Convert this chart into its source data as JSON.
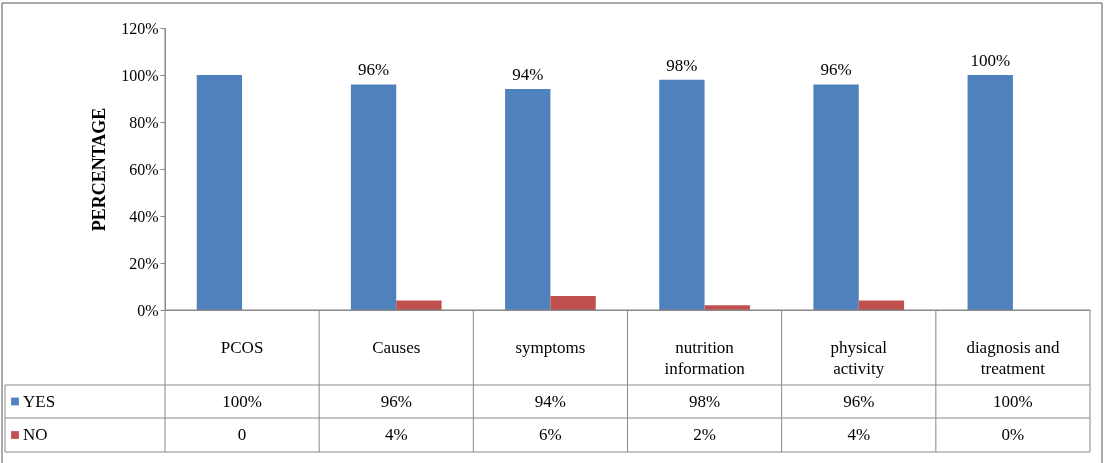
{
  "chart_data": {
    "type": "bar",
    "ylabel": "PERCENTAGE",
    "categories": [
      "PCOS",
      "Causes",
      "symptoms",
      "nutrition information",
      "physical activity",
      "diagnosis and treatment"
    ],
    "series": [
      {
        "name": "YES",
        "color": "#4f81bd",
        "values": [
          100,
          96,
          94,
          98,
          96,
          100
        ],
        "value_labels": [
          "100%",
          "96%",
          "94%",
          "98%",
          "96%",
          "100%"
        ]
      },
      {
        "name": "NO",
        "color": "#c0504d",
        "values": [
          0,
          4,
          6,
          2,
          4,
          0
        ],
        "value_labels": [
          "0",
          "4%",
          "6%",
          "2%",
          "4%",
          "0%"
        ]
      }
    ],
    "ylim": [
      0,
      120
    ],
    "yticks": [
      {
        "value": 0,
        "label": "0%"
      },
      {
        "value": 20,
        "label": "20%"
      },
      {
        "value": 40,
        "label": "40%"
      },
      {
        "value": 60,
        "label": "60%"
      },
      {
        "value": 80,
        "label": "80%"
      },
      {
        "value": 100,
        "label": "100%"
      },
      {
        "value": 120,
        "label": "120%"
      }
    ],
    "annotations": [
      {
        "text": "96%",
        "x": "Causes",
        "y": 96
      },
      {
        "text": "94%",
        "x": "symptoms",
        "y": 94
      },
      {
        "text": "98%",
        "x": "nutrition information",
        "y": 98
      },
      {
        "text": "96%",
        "x": "physical activity",
        "y": 96
      },
      {
        "text": "100%",
        "x": "diagnosis and treatment",
        "y": 100
      }
    ],
    "legend": "bottom"
  }
}
